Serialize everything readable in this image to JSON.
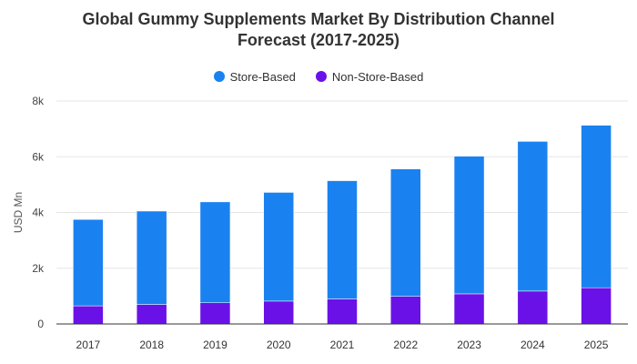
{
  "chart_data": {
    "type": "bar",
    "stacked": true,
    "title_line1": "Global Gummy Supplements Market By Distribution Channel",
    "title_line2": "Forecast (2017-2025)",
    "ylabel": "USD Mn",
    "xlabel": "",
    "categories": [
      "2017",
      "2018",
      "2019",
      "2020",
      "2021",
      "2022",
      "2023",
      "2024",
      "2025"
    ],
    "series": [
      {
        "name": "Non-Store-Based",
        "color": "#6a11e8",
        "values": [
          650,
          700,
          760,
          820,
          900,
          990,
          1080,
          1180,
          1300
        ]
      },
      {
        "name": "Store-Based",
        "color": "#1a82f0",
        "values": [
          3100,
          3350,
          3620,
          3900,
          4240,
          4570,
          4940,
          5370,
          5830
        ]
      }
    ],
    "legend_order": [
      "Store-Based",
      "Non-Store-Based"
    ],
    "legend_position": "top-center",
    "ylim": [
      0,
      8000
    ],
    "y_ticks": [
      0,
      2000,
      4000,
      6000,
      8000
    ],
    "y_tick_labels": [
      "0",
      "2k",
      "4k",
      "6k",
      "8k"
    ],
    "grid": true
  }
}
